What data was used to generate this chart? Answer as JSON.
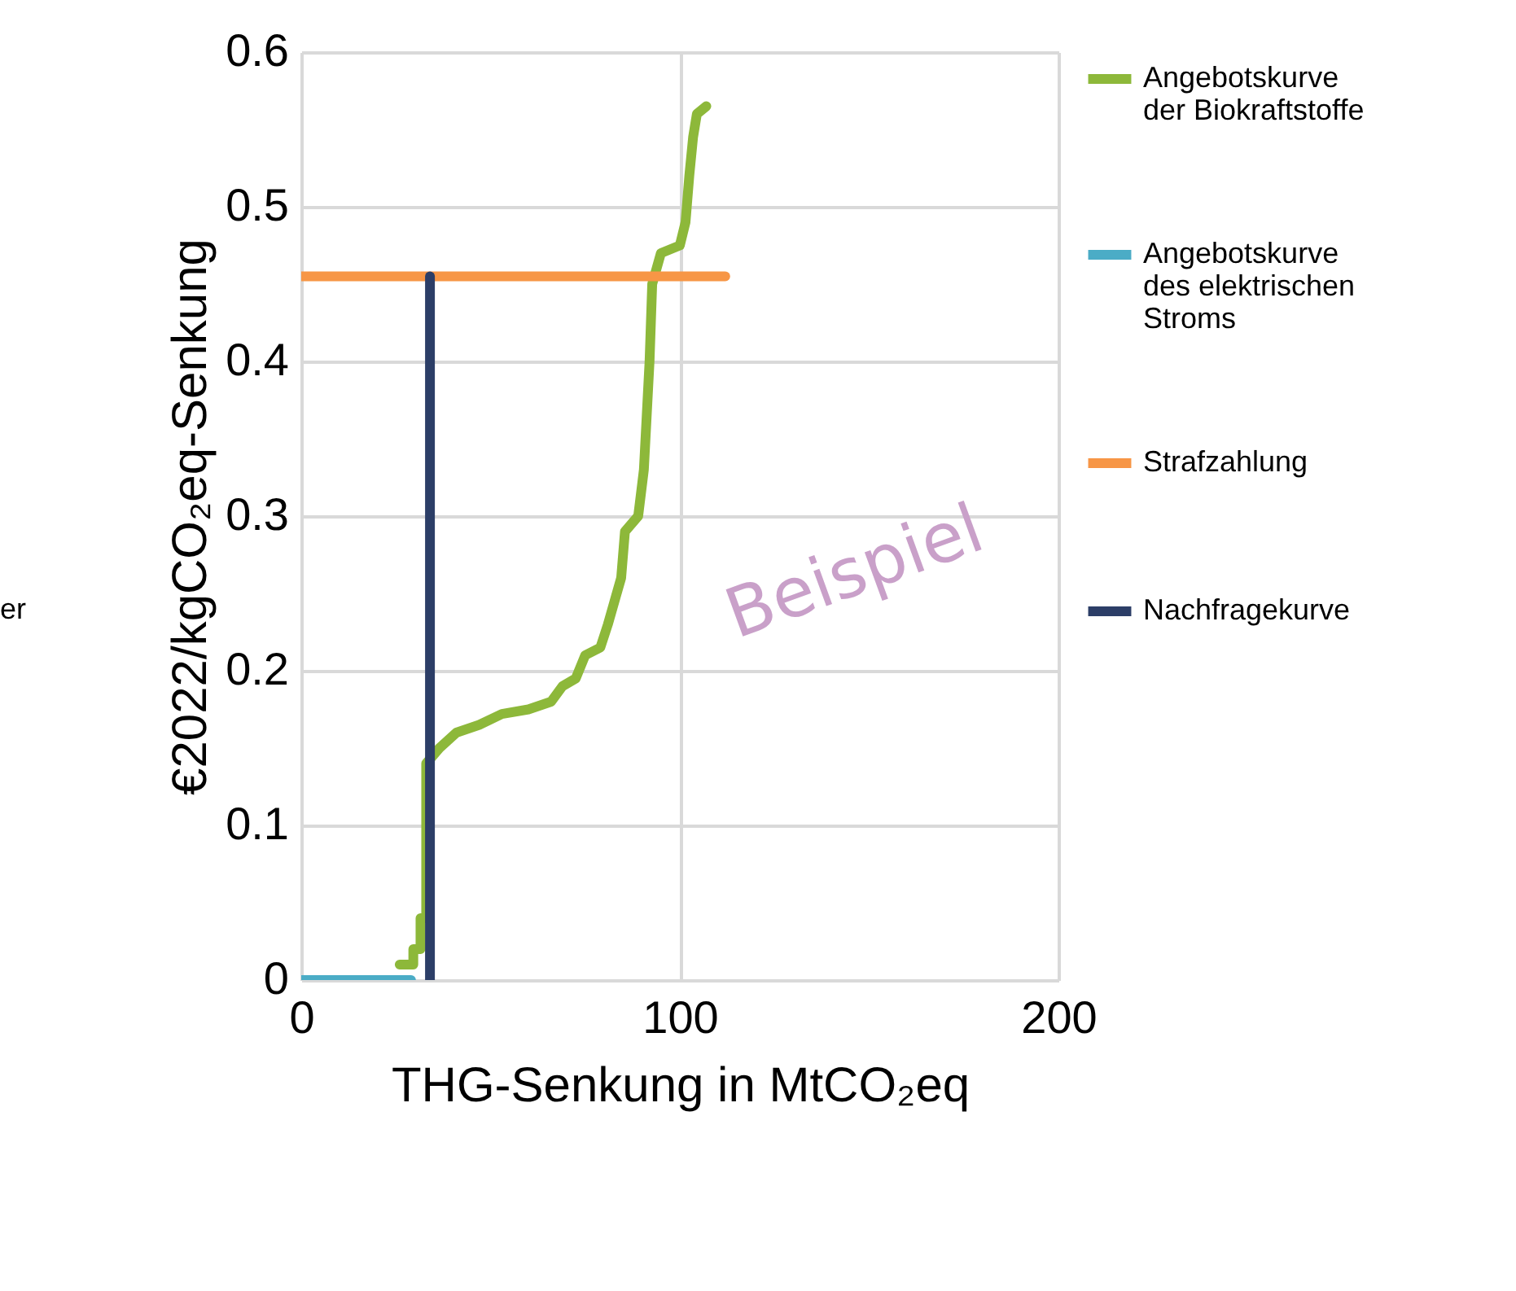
{
  "chart_data": {
    "type": "line",
    "xlabel": "THG-Senkung in MtCO₂eq",
    "ylabel": "€2022/kgCO₂eq-Senkung",
    "xlim": [
      0,
      200
    ],
    "xticks": [
      0,
      100,
      200
    ],
    "ylim": [
      0,
      0.6
    ],
    "yticks": [
      0,
      0.1,
      0.2,
      0.3,
      0.4,
      0.5,
      0.6
    ],
    "grid": true,
    "legend": "right",
    "annotations": [
      "Beispiel",
      "er"
    ],
    "series": [
      {
        "name": "Angebotskurve\nder Biokraftstoffe",
        "color": "#8db83a",
        "x": [
          26,
          29.6,
          29.6,
          31.5,
          31.5,
          33,
          33,
          36.5,
          41,
          47,
          53,
          60,
          66,
          69,
          72.5,
          75,
          79,
          81,
          84.5,
          85.5,
          89,
          90.5,
          92,
          92.7,
          95,
          100,
          101.5,
          102.5,
          103.5,
          104.5,
          107
        ],
        "values": [
          0.01,
          0.01,
          0.02,
          0.02,
          0.04,
          0.04,
          0.14,
          0.15,
          0.16,
          0.165,
          0.172,
          0.175,
          0.18,
          0.19,
          0.195,
          0.21,
          0.215,
          0.23,
          0.26,
          0.29,
          0.3,
          0.33,
          0.4,
          0.45,
          0.47,
          0.475,
          0.49,
          0.52,
          0.545,
          0.56,
          0.565
        ]
      },
      {
        "name": "Angebotskurve\ndes elektrischen\nStroms",
        "color": "#4bacc6",
        "x": [
          0,
          29
        ],
        "values": [
          0,
          0
        ]
      },
      {
        "name": "Strafzahlung",
        "color": "#f79646",
        "x": [
          0,
          112
        ],
        "values": [
          0.455,
          0.455
        ]
      },
      {
        "name": "Nachfragekurve",
        "color": "#2c3e67",
        "x": [
          34,
          34
        ],
        "values": [
          0,
          0.455
        ]
      }
    ]
  }
}
